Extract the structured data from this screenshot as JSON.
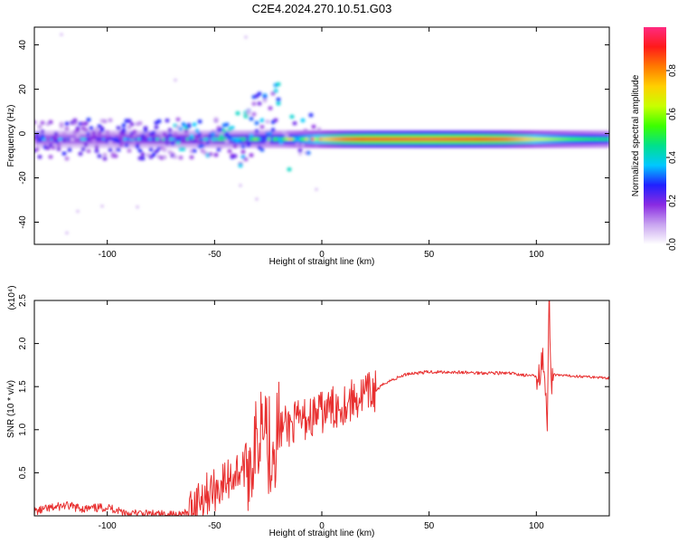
{
  "title": "C2E4.2024.270.10.51.G03",
  "chart_data": [
    {
      "type": "heatmap",
      "xlabel": "Height of straight line (km)",
      "ylabel": "Frequency (Hz)",
      "xlim": [
        -134,
        134
      ],
      "ylim": [
        -50,
        48
      ],
      "xticks": [
        -100,
        -50,
        0,
        50,
        100
      ],
      "yticks": [
        -40,
        -20,
        0,
        20,
        40
      ],
      "ridge_frequency": -2.5,
      "ridge_strength": [
        {
          "x": -134,
          "amp": 0.25
        },
        {
          "x": -120,
          "amp": 0.25
        },
        {
          "x": -100,
          "amp": 0.28
        },
        {
          "x": -80,
          "amp": 0.3
        },
        {
          "x": -60,
          "amp": 0.32
        },
        {
          "x": -40,
          "amp": 0.38
        },
        {
          "x": -20,
          "amp": 0.45
        },
        {
          "x": 0,
          "amp": 0.7
        },
        {
          "x": 10,
          "amp": 0.85
        },
        {
          "x": 20,
          "amp": 0.92
        },
        {
          "x": 50,
          "amp": 0.95
        },
        {
          "x": 70,
          "amp": 0.92
        },
        {
          "x": 85,
          "amp": 0.85
        },
        {
          "x": 100,
          "amp": 0.65
        },
        {
          "x": 115,
          "amp": 0.55
        },
        {
          "x": 134,
          "amp": 0.45
        }
      ],
      "colorbar": {
        "label": "Normalized spectral amplitude",
        "range": [
          0,
          1
        ],
        "ticks": [
          0.0,
          0.2,
          0.4,
          0.6,
          0.8
        ],
        "tick_labels": [
          "0.0",
          "0.2",
          "0.4",
          "0.6",
          "0.8"
        ],
        "colors": [
          "#ffffff",
          "#c9a5f0",
          "#8a2be2",
          "#2020ff",
          "#00c8ff",
          "#00e08c",
          "#3cff00",
          "#c8ff00",
          "#ffd000",
          "#ff7a00",
          "#ff1a1a",
          "#ff2a80"
        ]
      },
      "grid": false
    },
    {
      "type": "line",
      "xlabel": "Height of straight line (km)",
      "ylabel": "SNR (10 * v/v)",
      "scale_note": "(x10⁴)",
      "xlim": [
        -134,
        134
      ],
      "ylim": [
        0,
        2.5
      ],
      "xticks": [
        -100,
        -50,
        0,
        50,
        100
      ],
      "yticks": [
        0.5,
        1.0,
        1.5,
        2.0,
        2.5
      ],
      "ytick_labels": [
        "0.5",
        "1.0",
        "1.5",
        "2.0",
        "2.5"
      ],
      "color": "#e83030",
      "series": [
        {
          "x": [
            -134,
            -120,
            -110,
            -100,
            -90,
            -80,
            -70,
            -62,
            -58,
            -55,
            -50,
            -45,
            -40,
            -35,
            -30,
            -27,
            -25,
            -22,
            -20,
            -15,
            -10,
            -5,
            0,
            5,
            10,
            15,
            20,
            25,
            30,
            40,
            50,
            60,
            70,
            80,
            90,
            95,
            100,
            103,
            105,
            106,
            107,
            110,
            120,
            134
          ],
          "y": [
            0.05,
            0.12,
            0.08,
            0.1,
            0.03,
            0.02,
            0.01,
            0.03,
            0.2,
            0.25,
            0.3,
            0.4,
            0.5,
            0.6,
            0.8,
            1.5,
            0.8,
            0.9,
            1.0,
            1.05,
            1.1,
            1.15,
            1.2,
            1.25,
            1.3,
            1.35,
            1.4,
            1.45,
            1.55,
            1.65,
            1.67,
            1.67,
            1.66,
            1.66,
            1.65,
            1.63,
            1.62,
            1.9,
            1.0,
            2.5,
            1.65,
            1.63,
            1.62,
            1.6
          ]
        }
      ],
      "grid": false
    }
  ]
}
